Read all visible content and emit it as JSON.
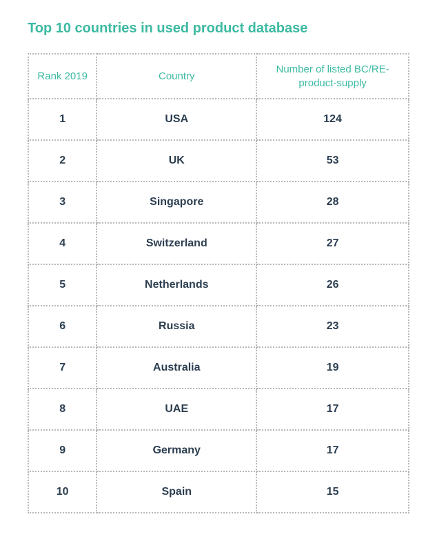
{
  "title": "Top 10 countries in used product database",
  "table": {
    "type": "table",
    "columns": [
      {
        "label": "Rank 2019",
        "width": "18%"
      },
      {
        "label": "Country",
        "width": "42%"
      },
      {
        "label": "Number of listed BC/RE-product-supply",
        "width": "40%"
      }
    ],
    "rows": [
      {
        "rank": "1",
        "country": "USA",
        "number": "124"
      },
      {
        "rank": "2",
        "country": "UK",
        "number": "53"
      },
      {
        "rank": "3",
        "country": "Singapore",
        "number": "28"
      },
      {
        "rank": "4",
        "country": "Switzerland",
        "number": "27"
      },
      {
        "rank": "5",
        "country": "Netherlands",
        "number": "26"
      },
      {
        "rank": "6",
        "country": "Russia",
        "number": "23"
      },
      {
        "rank": "7",
        "country": "Australia",
        "number": "19"
      },
      {
        "rank": "8",
        "country": "UAE",
        "number": "17"
      },
      {
        "rank": "9",
        "country": "Germany",
        "number": "17"
      },
      {
        "rank": "10",
        "country": "Spain",
        "number": "15"
      }
    ],
    "colors": {
      "title_color": "#3cbaa2",
      "header_color": "#3cbaa2",
      "cell_text_color": "#2c3e50",
      "border_color": "#b8b8b8",
      "background_color": "#ffffff"
    },
    "typography": {
      "title_fontsize": 20,
      "title_fontweight": 600,
      "header_fontsize": 15,
      "header_fontweight": 500,
      "cell_fontsize": 16,
      "cell_fontweight": 600
    },
    "border_style": "dotted"
  }
}
